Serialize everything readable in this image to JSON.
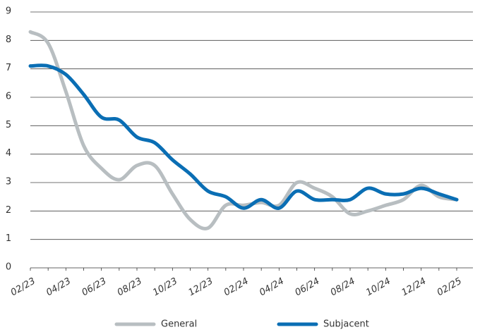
{
  "chart_data": {
    "type": "line",
    "categories": [
      "02/23",
      null,
      "04/23",
      null,
      "06/23",
      null,
      "08/23",
      null,
      "10/23",
      null,
      "12/23",
      null,
      "02/24",
      null,
      "04/24",
      null,
      "06/24",
      null,
      "08/24",
      null,
      "10/24",
      null,
      "12/24",
      null,
      "02/25"
    ],
    "series": [
      {
        "name": "General",
        "color": "#b8bec1",
        "values": [
          8.3,
          7.9,
          6.2,
          4.3,
          3.5,
          3.1,
          3.6,
          3.6,
          2.6,
          1.7,
          1.4,
          2.2,
          2.2,
          2.3,
          2.2,
          3.0,
          2.8,
          2.5,
          1.9,
          2.0,
          2.2,
          2.4,
          2.9,
          2.5,
          2.4
        ]
      },
      {
        "name": "Subjacent",
        "color": "#0a6eb4",
        "values": [
          7.1,
          7.1,
          6.8,
          6.1,
          5.3,
          5.2,
          4.6,
          4.4,
          3.8,
          3.3,
          2.7,
          2.5,
          2.1,
          2.4,
          2.1,
          2.7,
          2.4,
          2.4,
          2.4,
          2.8,
          2.6,
          2.6,
          2.8,
          2.6,
          2.4
        ]
      }
    ],
    "ylim": [
      0,
      9
    ],
    "yticks": [
      0,
      1,
      2,
      3,
      4,
      5,
      6,
      7,
      8,
      9
    ],
    "grid": true,
    "legend": "bottom"
  }
}
